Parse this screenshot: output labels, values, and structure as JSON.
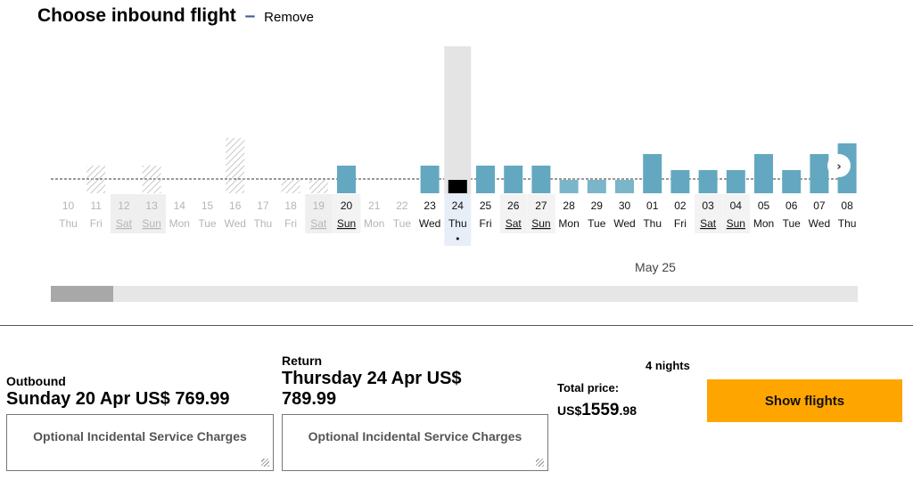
{
  "header": {
    "title": "Choose inbound flight",
    "dash": "–",
    "remove_label": "Remove"
  },
  "calendar": {
    "next_icon": "chevron-right-icon",
    "month_marker": "May 25",
    "days": [
      {
        "date": "10",
        "day": "Thu",
        "status": "unavailable"
      },
      {
        "date": "11",
        "day": "Fri",
        "status": "hatched"
      },
      {
        "date": "12",
        "day": "Sat",
        "status": "unavailable",
        "weekend": true
      },
      {
        "date": "13",
        "day": "Sun",
        "status": "hatched",
        "weekend": true
      },
      {
        "date": "14",
        "day": "Mon",
        "status": "unavailable"
      },
      {
        "date": "15",
        "day": "Tue",
        "status": "unavailable"
      },
      {
        "date": "16",
        "day": "Wed",
        "status": "hatched"
      },
      {
        "date": "17",
        "day": "Thu",
        "status": "unavailable"
      },
      {
        "date": "18",
        "day": "Fri",
        "status": "hatched"
      },
      {
        "date": "19",
        "day": "Sat",
        "status": "hatched",
        "weekend": true
      },
      {
        "date": "20",
        "day": "Sun",
        "status": "available",
        "weekend": true
      },
      {
        "date": "21",
        "day": "Mon",
        "status": "unavailable"
      },
      {
        "date": "22",
        "day": "Tue",
        "status": "unavailable"
      },
      {
        "date": "23",
        "day": "Wed",
        "status": "available"
      },
      {
        "date": "24",
        "day": "Thu",
        "status": "selected"
      },
      {
        "date": "25",
        "day": "Fri",
        "status": "available"
      },
      {
        "date": "26",
        "day": "Sat",
        "status": "available",
        "weekend": true
      },
      {
        "date": "27",
        "day": "Sun",
        "status": "available",
        "weekend": true
      },
      {
        "date": "28",
        "day": "Mon",
        "status": "available"
      },
      {
        "date": "29",
        "day": "Tue",
        "status": "available"
      },
      {
        "date": "30",
        "day": "Wed",
        "status": "available"
      },
      {
        "date": "01",
        "day": "Thu",
        "status": "available"
      },
      {
        "date": "02",
        "day": "Fri",
        "status": "available"
      },
      {
        "date": "03",
        "day": "Sat",
        "status": "available",
        "weekend": true
      },
      {
        "date": "04",
        "day": "Sun",
        "status": "available",
        "weekend": true
      },
      {
        "date": "05",
        "day": "Mon",
        "status": "available"
      },
      {
        "date": "06",
        "day": "Tue",
        "status": "available"
      },
      {
        "date": "07",
        "day": "Wed",
        "status": "available"
      },
      {
        "date": "08",
        "day": "Thu",
        "status": "available"
      }
    ]
  },
  "summary": {
    "outbound_label": "Outbound",
    "outbound_value": "Sunday 20 Apr US$ 769.99",
    "return_label": "Return",
    "return_value": "Thursday 24 Apr US$ 789.99",
    "ois_label": "Optional Incidental Service Charges",
    "nights": "4 nights",
    "total_label": "Total price:",
    "total_currency": "US$",
    "total_whole": "1559",
    "total_cents": ".98",
    "show_button": "Show flights"
  },
  "colors": {
    "bar": "#63a8c0",
    "bar_light": "#7ab5c9",
    "selected": "#000000",
    "button": "#ffa500"
  }
}
